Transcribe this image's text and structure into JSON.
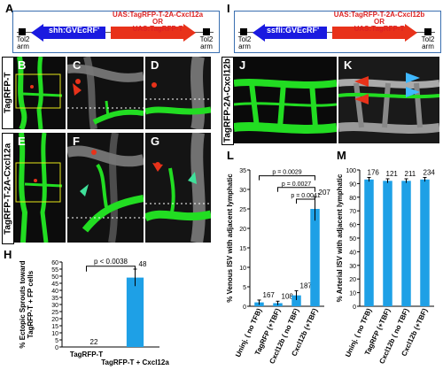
{
  "panels": {
    "A": "A",
    "B": "B",
    "C": "C",
    "D": "D",
    "E": "E",
    "F": "F",
    "G": "G",
    "H": "H",
    "I": "I",
    "J": "J",
    "K": "K",
    "L": "L",
    "M": "M"
  },
  "construct_left": {
    "tol2_left": "Tol2\narm",
    "driver": "shh:GVEcRF'",
    "payload": "UAS:TagRFP-T-2A-Cxcl12a\nOR\nUAS:TagRFP-T",
    "tol2_right": "Tol2\narm"
  },
  "construct_right": {
    "tol2_left": "Tol2\narm",
    "driver": "ssfli:GVEcRF'",
    "payload": "UAS:TagRFP-T-2A-Cxcl12b\nOR\nUAS:TagRFP-T",
    "tol2_right": "Tol2\narm"
  },
  "row_labels": {
    "top": "TagRFP-T",
    "bottom": "TagRFP-T-2A-Cxcl12a",
    "right": "TagRFP-2A-Cxcl12b"
  },
  "colors": {
    "green": "#22dd22",
    "red": "#e8321a",
    "blue": "#1a1ae0",
    "bar": "#1ea0e6",
    "cyan": "#3fb8ff"
  },
  "chart_data": [
    {
      "type": "bar",
      "panel": "H",
      "categories": [
        "TagRFP-T",
        "TagRFP-T + Cxcl12a"
      ],
      "values": [
        0,
        49
      ],
      "errors": [
        0,
        6
      ],
      "n_labels": [
        "22",
        "48"
      ],
      "ylabel": "% Ectopic Sprouts toward\nTagRFP-T + FP cells",
      "yticks": [
        "0",
        "5",
        "10",
        "15",
        "20",
        "25",
        "30",
        "35",
        "40",
        "45",
        "50",
        "55",
        "60"
      ],
      "ylim": [
        0,
        60
      ],
      "annotation": "p < 0.0038"
    },
    {
      "type": "bar",
      "panel": "L",
      "categories": [
        "Uninj. ( no TFB)",
        "TagRFP (+TBF)",
        "Cxcl12b ( no TBF)",
        "Cxcl12b (+TBF)"
      ],
      "values": [
        1,
        0.8,
        2.8,
        25
      ],
      "errors": [
        0.6,
        0.5,
        1.2,
        3
      ],
      "n_labels": [
        "167",
        "108",
        "187",
        "207"
      ],
      "ylabel": "% Venous ISV with adjacent lymphatic",
      "yticks": [
        "0",
        "5",
        "10",
        "15",
        "20",
        "25",
        "30",
        "35"
      ],
      "ylim": [
        0,
        35
      ],
      "annotations": [
        "p = 0.0029",
        "p = 0.0027",
        "p = 0.0041"
      ]
    },
    {
      "type": "bar",
      "panel": "M",
      "categories": [
        "Uninj. ( no TFB)",
        "TagRFP (+TBF)",
        "Cxcl12b ( no TBF)",
        "Cxcl12b (+TBF)"
      ],
      "values": [
        93,
        92,
        92,
        93
      ],
      "errors": [
        1.5,
        1.5,
        1.5,
        1.5
      ],
      "n_labels": [
        "176",
        "121",
        "211",
        "234"
      ],
      "ylabel": "% Arterial ISV with adjacent lymphatic",
      "yticks": [
        "0",
        "10",
        "20",
        "30",
        "40",
        "50",
        "60",
        "70",
        "80",
        "90",
        "100"
      ],
      "ylim": [
        0,
        100
      ]
    }
  ]
}
